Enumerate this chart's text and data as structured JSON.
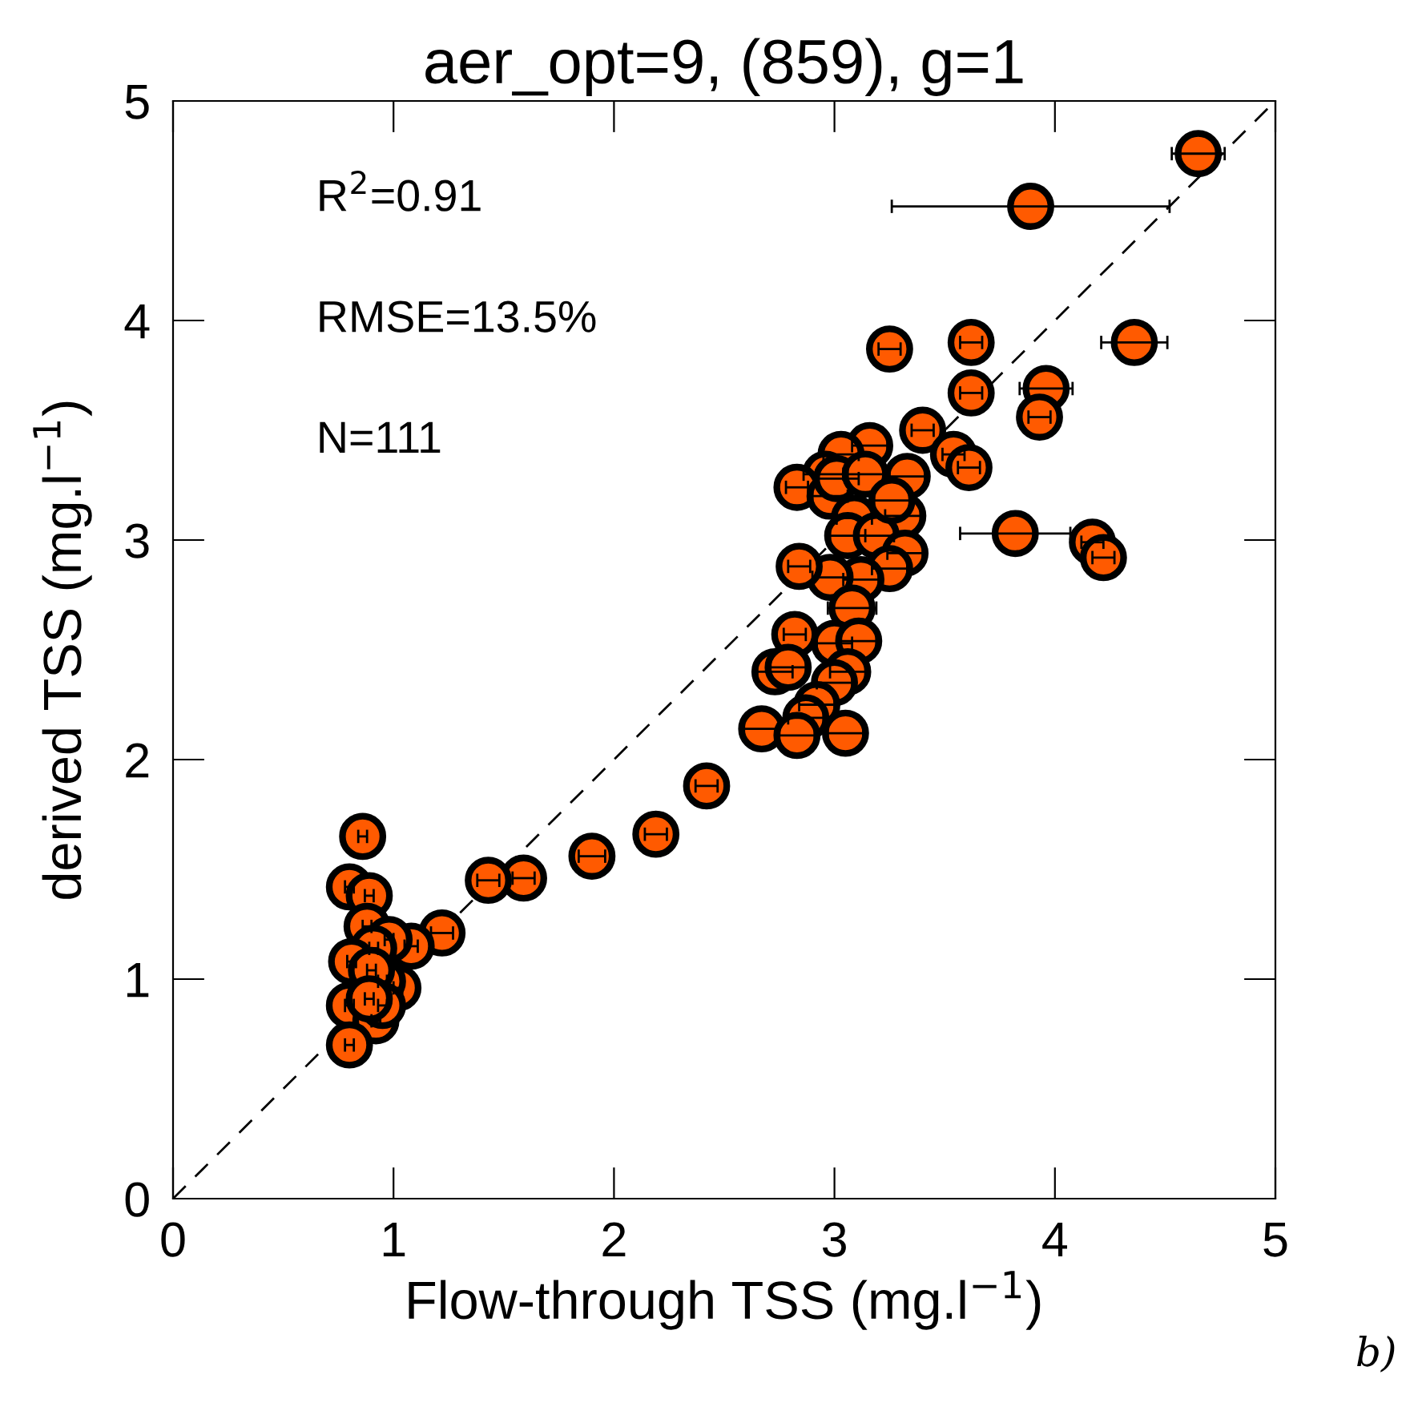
{
  "chart_data": {
    "type": "scatter",
    "title": "aer_opt=9, (859), g=1",
    "xlabel": "Flow-through TSS (mg.l$^{−1}$)",
    "ylabel": "derived TSS (mg.l$^{−1}$)",
    "xlim": [
      0,
      5
    ],
    "ylim": [
      0,
      5
    ],
    "xticks": [
      0,
      1,
      2,
      3,
      4,
      5
    ],
    "yticks": [
      0,
      1,
      2,
      3,
      4,
      5
    ],
    "grid": false,
    "legend": false,
    "marker": "circle",
    "series": [
      {
        "color": "#ff5a00",
        "x": [
          4.65,
          3.89,
          3.25,
          3.62,
          4.36,
          3.62,
          3.96,
          3.93,
          3.4,
          3.54,
          3.61,
          3.33,
          3.16,
          3.03,
          2.96,
          2.83,
          2.98,
          3.31,
          3.09,
          3.06,
          3.19,
          3.32,
          3.25,
          3.12,
          2.98,
          2.84,
          3.82,
          4.17,
          4.22,
          3.08,
          2.82,
          3.0,
          3.11,
          3.06,
          3.0,
          2.73,
          2.79,
          2.92,
          2.87,
          2.67,
          2.83,
          3.05,
          2.42,
          2.19,
          1.9,
          1.59,
          1.43,
          1.22,
          1.08,
          0.86,
          0.8,
          0.89,
          0.88,
          0.98,
          0.91,
          0.81,
          1.02,
          0.95,
          0.8,
          0.92,
          0.95,
          0.8,
          0.9,
          0.89,
          3.01,
          3.14,
          3.26
        ],
        "values": [
          4.76,
          4.52,
          3.87,
          3.9,
          3.9,
          3.67,
          3.69,
          3.56,
          3.5,
          3.39,
          3.33,
          3.29,
          3.43,
          3.39,
          3.3,
          3.24,
          3.2,
          3.11,
          3.1,
          3.02,
          3.02,
          2.94,
          2.87,
          2.82,
          2.83,
          2.88,
          3.03,
          2.99,
          2.92,
          2.69,
          2.57,
          2.53,
          2.54,
          2.4,
          2.35,
          2.4,
          2.42,
          2.25,
          2.19,
          2.14,
          2.11,
          2.12,
          1.88,
          1.66,
          1.56,
          1.46,
          1.45,
          1.21,
          1.15,
          1.65,
          1.42,
          1.38,
          1.24,
          1.18,
          1.14,
          1.08,
          0.96,
          0.99,
          0.88,
          0.81,
          0.88,
          0.7,
          1.04,
          0.91,
          3.28,
          3.3,
          3.18
        ],
        "xerrors": [
          0.12,
          0.63,
          0.05,
          0.05,
          0.15,
          0.05,
          0.12,
          0.05,
          0.05,
          0.05,
          0.05,
          0.08,
          0.08,
          0.08,
          0.1,
          0.05,
          0.08,
          0.08,
          0.08,
          0.08,
          0.08,
          0.08,
          0.08,
          0.08,
          0.08,
          0.05,
          0.25,
          0.05,
          0.05,
          0.11,
          0.05,
          0.08,
          0.08,
          0.08,
          0.08,
          0.08,
          0.08,
          0.08,
          0.08,
          0.08,
          0.08,
          0.08,
          0.05,
          0.05,
          0.06,
          0.05,
          0.05,
          0.05,
          0.03,
          0.02,
          0.02,
          0.02,
          0.02,
          0.02,
          0.02,
          0.02,
          0.02,
          0.02,
          0.02,
          0.02,
          0.02,
          0.02,
          0.02,
          0.02,
          0.1,
          0.1,
          0.08
        ]
      },
      {
        "type": "line",
        "color": "#000000",
        "line_style": "dashed",
        "marker": "none",
        "x": [
          0,
          5
        ],
        "values": [
          0,
          5
        ]
      }
    ],
    "annotations": [
      "R$^{2}$=0.91",
      "RMSE=13.5%",
      "N=111",
      "b)"
    ]
  }
}
